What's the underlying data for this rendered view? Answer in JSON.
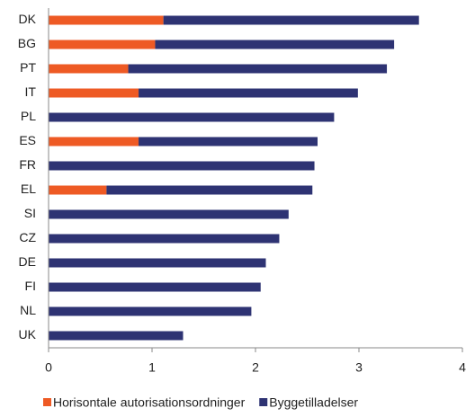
{
  "chart_data": {
    "type": "stacked-barh",
    "categories": [
      "DK",
      "BG",
      "PT",
      "IT",
      "PL",
      "ES",
      "FR",
      "EL",
      "SI",
      "CZ",
      "DE",
      "FI",
      "NL",
      "UK"
    ],
    "series": [
      {
        "name": "Horisontale autorisationsordninger",
        "color": "#ee5a24",
        "values": [
          1.11,
          1.03,
          0.77,
          0.87,
          0,
          0.87,
          0,
          0.56,
          0,
          0,
          0,
          0,
          0,
          0
        ]
      },
      {
        "name": "Byggetilladelser",
        "color": "#2e3373",
        "values": [
          2.47,
          2.31,
          2.5,
          2.12,
          2.76,
          1.73,
          2.57,
          1.99,
          2.32,
          2.23,
          2.1,
          2.05,
          1.96,
          1.3
        ]
      }
    ],
    "xlim": [
      0,
      4
    ],
    "xticks": [
      0,
      1,
      2,
      3,
      4
    ],
    "legend": "bottom"
  }
}
